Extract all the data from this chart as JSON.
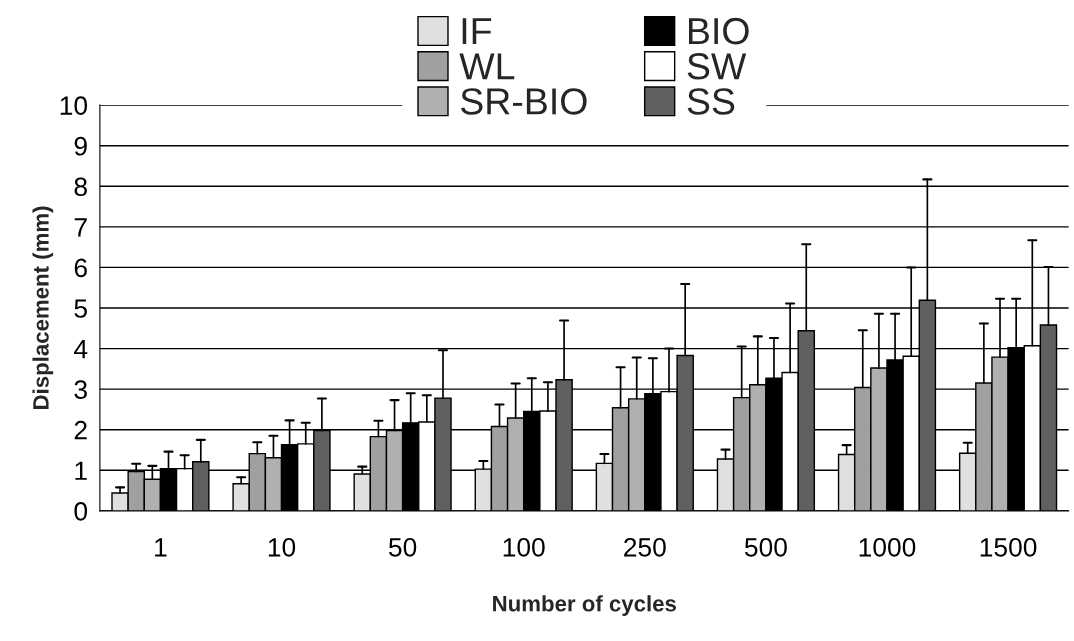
{
  "chart_data": {
    "type": "bar",
    "xlabel": "Number of cycles",
    "ylabel": "Displacement (mm)",
    "categories": [
      "1",
      "10",
      "50",
      "100",
      "250",
      "500",
      "1000",
      "1500"
    ],
    "series": [
      {
        "name": "IF",
        "color": "#e0e0e0",
        "values": [
          0.44,
          0.67,
          0.91,
          1.03,
          1.17,
          1.28,
          1.39,
          1.42
        ],
        "errors": [
          [
            0.44,
            0.58
          ],
          [
            0.67,
            0.83
          ],
          [
            0.91,
            1.09
          ],
          [
            1.03,
            1.23
          ],
          [
            1.17,
            1.4
          ],
          [
            1.28,
            1.51
          ],
          [
            1.39,
            1.62
          ],
          [
            1.42,
            1.68
          ]
        ]
      },
      {
        "name": "WL",
        "color": "#a0a0a0",
        "values": [
          0.97,
          1.41,
          1.83,
          2.08,
          2.54,
          2.79,
          3.04,
          3.15
        ],
        "errors": [
          [
            0.97,
            1.16
          ],
          [
            1.41,
            1.69
          ],
          [
            1.83,
            2.22
          ],
          [
            2.08,
            2.62
          ],
          [
            2.54,
            3.54
          ],
          [
            2.79,
            4.05
          ],
          [
            3.04,
            4.45
          ],
          [
            3.15,
            4.62
          ]
        ]
      },
      {
        "name": "SR-BIO",
        "color": "#b0b0b0",
        "values": [
          0.78,
          1.31,
          1.98,
          2.29,
          2.76,
          3.11,
          3.52,
          3.79
        ],
        "errors": [
          [
            0.78,
            1.11
          ],
          [
            1.31,
            1.85
          ],
          [
            1.98,
            2.73
          ],
          [
            2.29,
            3.14
          ],
          [
            2.76,
            3.78
          ],
          [
            3.11,
            4.3
          ],
          [
            3.52,
            4.86
          ],
          [
            3.79,
            5.23
          ]
        ]
      },
      {
        "name": "BIO",
        "color": "#000000",
        "values": [
          1.04,
          1.63,
          2.17,
          2.45,
          2.89,
          3.27,
          3.72,
          4.02
        ],
        "errors": [
          [
            1.04,
            1.46
          ],
          [
            1.63,
            2.23
          ],
          [
            2.17,
            2.9
          ],
          [
            2.45,
            3.27
          ],
          [
            2.89,
            3.76
          ],
          [
            3.27,
            4.26
          ],
          [
            3.72,
            4.86
          ],
          [
            4.02,
            5.23
          ]
        ]
      },
      {
        "name": "SW",
        "color": "#ffffff",
        "values": [
          1.04,
          1.65,
          2.19,
          2.46,
          2.94,
          3.41,
          3.81,
          4.07
        ],
        "errors": [
          [
            1.04,
            1.37
          ],
          [
            1.65,
            2.17
          ],
          [
            2.19,
            2.85
          ],
          [
            2.46,
            3.17
          ],
          [
            2.94,
            4.0
          ],
          [
            3.41,
            5.11
          ],
          [
            3.81,
            6.0
          ],
          [
            4.07,
            6.67
          ]
        ]
      },
      {
        "name": "SS",
        "color": "#606060",
        "values": [
          1.21,
          1.98,
          2.78,
          3.23,
          3.83,
          4.44,
          5.19,
          4.58
        ],
        "errors": [
          [
            1.21,
            1.75
          ],
          [
            1.98,
            2.77
          ],
          [
            2.78,
            3.96
          ],
          [
            3.23,
            4.69
          ],
          [
            3.83,
            5.59
          ],
          [
            4.44,
            6.57
          ],
          [
            5.19,
            8.17
          ],
          [
            4.58,
            6.01
          ]
        ]
      }
    ],
    "ylim": [
      0,
      10
    ],
    "yticks": [
      0,
      1,
      2,
      3,
      4,
      5,
      6,
      7,
      8,
      9,
      10
    ],
    "grid": "y",
    "legend": "top"
  }
}
